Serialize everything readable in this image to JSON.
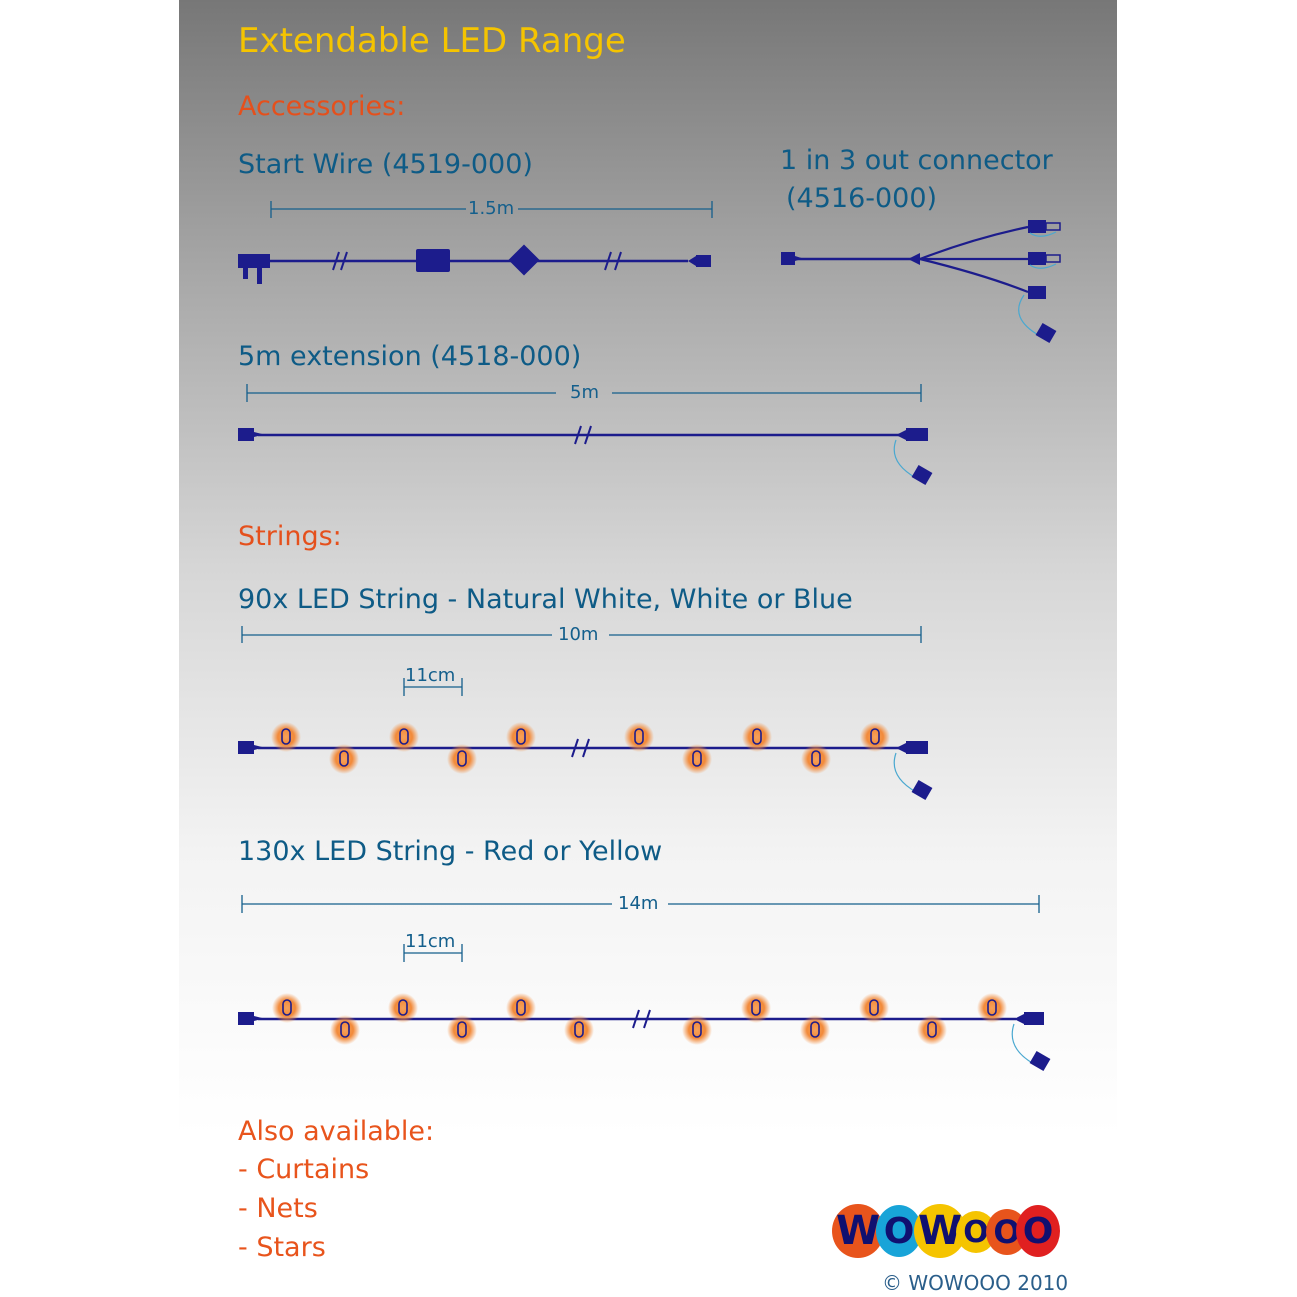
{
  "title": "Extendable LED Range",
  "accessories": {
    "heading": "Accessories:",
    "start_wire": {
      "name": "Start Wire (4519-000)",
      "length": "1.5m"
    },
    "connector": {
      "name_line1": "1 in 3 out connector",
      "name_line2": "(4516-000)"
    },
    "extension": {
      "name": "5m extension (4518-000)",
      "length": "5m"
    }
  },
  "strings": {
    "heading": "Strings:",
    "string_90": {
      "name": "90x LED String - Natural White, White or Blue",
      "length": "10m",
      "spacing": "11cm"
    },
    "string_130": {
      "name": "130x LED String - Red or Yellow",
      "length": "14m",
      "spacing": "11cm"
    }
  },
  "also_available": {
    "heading": "Also available:",
    "items": [
      "- Curtains",
      "- Nets",
      "- Stars"
    ]
  },
  "logo": {
    "letters": [
      "W",
      "O",
      "W",
      "O",
      "O",
      "O"
    ],
    "colors": [
      "#e8541c",
      "#18a4d8",
      "#f5c400",
      "#f5c400",
      "#e8541c",
      "#e02020"
    ]
  },
  "copyright": "© WOWOOO 2010",
  "colors": {
    "wire": "#1c1c8c",
    "led_glow": "#f28a3a",
    "dimension": "#145f8c",
    "heading_accent": "#e5501c",
    "title": "#f5c400"
  }
}
